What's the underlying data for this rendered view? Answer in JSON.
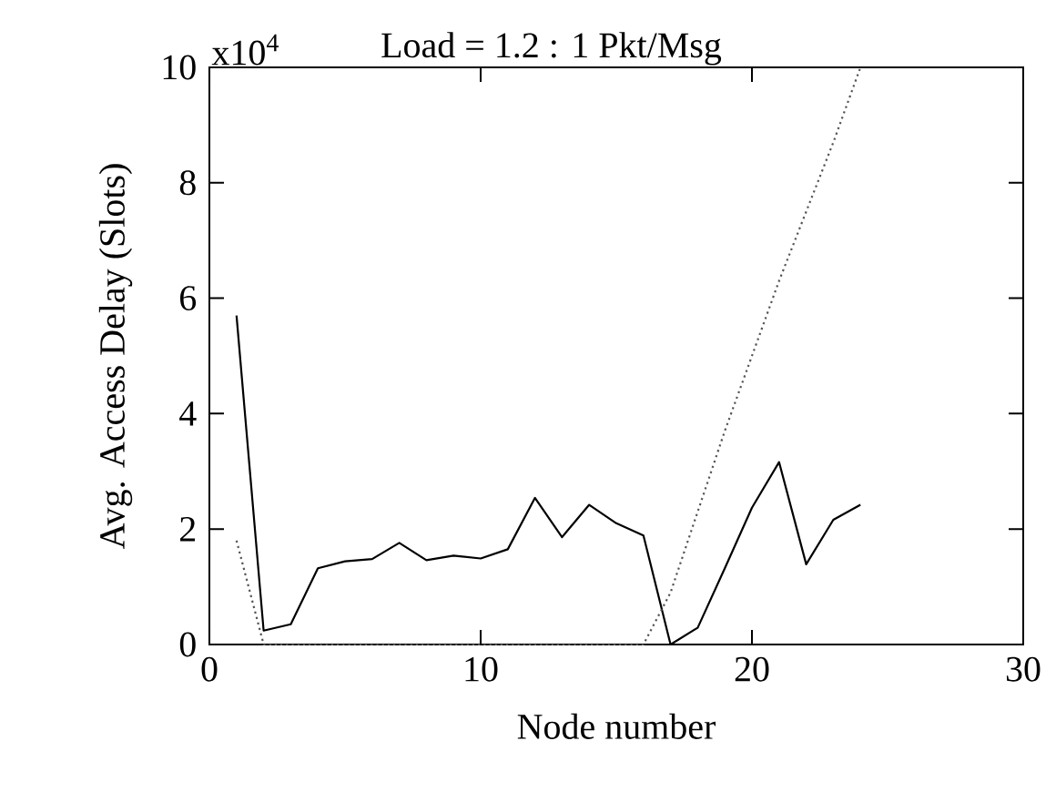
{
  "chart_data": {
    "type": "line",
    "title": "Load = 1.2 : 1 Pkt/Msg",
    "xlabel": "Node number",
    "ylabel": "Avg. Access Delay (Slots)",
    "annotations": [
      "x10$^{4}$"
    ],
    "x": [
      1,
      2,
      3,
      4,
      5,
      6,
      7,
      8,
      9,
      10,
      11,
      12,
      13,
      14,
      15,
      16,
      17,
      18,
      19,
      20,
      21,
      22,
      23,
      24
    ],
    "series": [
      {
        "color": "#000000",
        "line_style": "solid",
        "values": [
          5.7,
          0.24,
          0.35,
          1.32,
          1.44,
          1.48,
          1.76,
          1.46,
          1.54,
          1.49,
          1.65,
          2.54,
          1.86,
          2.42,
          2.1,
          1.89,
          0,
          0.29,
          1.32,
          2.37,
          3.16,
          1.39,
          2.16,
          2.42
        ]
      },
      {
        "color": "#555555",
        "line_style": "dotted",
        "values": [
          1.8,
          0,
          0,
          0,
          0,
          0,
          0,
          0,
          0,
          0,
          0,
          0,
          0,
          0,
          0,
          0,
          0.9,
          2.3,
          3.7,
          5.0,
          6.3,
          7.5,
          8.7,
          10
        ]
      }
    ],
    "xlim": [
      0,
      30
    ],
    "xticks": [
      0,
      10,
      20,
      30
    ],
    "ylim": [
      0,
      10
    ],
    "yticks": [
      0,
      2,
      4,
      6,
      8,
      10
    ],
    "grid": false,
    "marker": "none"
  }
}
